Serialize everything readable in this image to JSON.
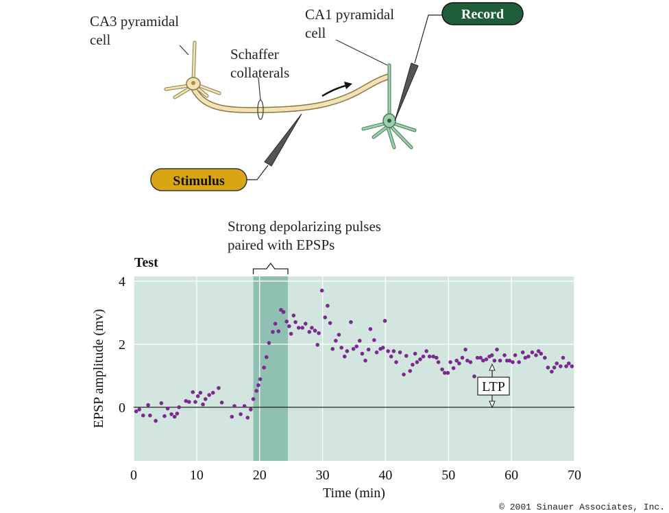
{
  "diagram": {
    "ca3_label": [
      "CA3 pyramidal",
      "cell"
    ],
    "schaffer_label": [
      "Schaffer",
      "collaterals"
    ],
    "ca1_label": [
      "CA1 pyramidal",
      "cell"
    ],
    "record_button": "Record",
    "stimulus_button": "Stimulus"
  },
  "chart_data": {
    "type": "scatter",
    "x_label": "Time (min)",
    "y_label": "EPSP amplitude (mv)",
    "annotations": {
      "test": "Test",
      "pulses": [
        "Strong depolarizing pulses",
        "paired with EPSPs"
      ],
      "ltp": "LTP"
    },
    "copyright": "© 2001 Sinauer Associates, Inc.",
    "highlight_span": [
      19,
      24.5
    ],
    "xlim": [
      0,
      70
    ],
    "ylim": [
      -1.7,
      4.15
    ],
    "xticks": [
      0,
      10,
      20,
      30,
      40,
      50,
      60,
      70
    ],
    "yticks": [
      0,
      2,
      4
    ],
    "grid": true,
    "color": "#7a2a8e",
    "x": [
      0.4,
      0.9,
      1.5,
      2.3,
      2.6,
      3.5,
      4.4,
      4.9,
      5.4,
      6.0,
      6.5,
      6.9,
      7.2,
      8.3,
      8.8,
      9.4,
      9.8,
      10.2,
      10.6,
      11.0,
      11.4,
      12.0,
      12.6,
      13.5,
      14.0,
      15.6,
      16.0,
      17.0,
      17.6,
      18.1,
      18.6,
      19.0,
      19.5,
      19.8,
      20.1,
      20.7,
      21.1,
      21.5,
      22.1,
      22.5,
      23.0,
      23.4,
      23.8,
      24.3,
      24.7,
      25.0,
      25.4,
      25.7,
      26.2,
      26.8,
      27.3,
      27.9,
      28.3,
      28.8,
      29.2,
      29.4,
      29.9,
      30.4,
      30.8,
      31.2,
      31.6,
      32.1,
      32.6,
      33.0,
      33.5,
      33.9,
      34.5,
      34.9,
      35.4,
      35.9,
      36.3,
      36.8,
      37.3,
      37.6,
      38.2,
      38.6,
      39.2,
      39.6,
      39.9,
      40.4,
      40.9,
      41.3,
      41.7,
      42.3,
      42.9,
      43.3,
      43.9,
      44.3,
      44.7,
      45.0,
      45.5,
      46.0,
      46.5,
      47.0,
      47.6,
      48.1,
      48.4,
      49.0,
      49.4,
      49.9,
      50.3,
      50.8,
      51.3,
      51.7,
      52.2,
      52.7,
      53.0,
      53.5,
      54.1,
      54.6,
      55.1,
      55.5,
      56.0,
      56.5,
      56.9,
      57.3,
      57.7,
      58.2,
      58.9,
      59.3,
      59.7,
      60.2,
      60.6,
      61.2,
      61.8,
      62.2,
      62.7,
      63.3,
      63.9,
      64.3,
      64.7,
      65.3,
      65.8,
      66.4,
      66.8,
      67.2,
      67.8,
      68.2,
      68.7,
      69.1,
      69.6
    ],
    "values": [
      -0.13,
      -0.07,
      -0.26,
      0.07,
      -0.26,
      -0.43,
      0.13,
      -0.28,
      -0.04,
      -0.22,
      -0.3,
      -0.2,
      0.0,
      0.2,
      0.17,
      0.48,
      0.17,
      0.35,
      0.46,
      0.09,
      0.26,
      0.39,
      0.46,
      0.61,
      0.15,
      -0.3,
      0.04,
      -0.22,
      0.04,
      -0.33,
      -0.07,
      0.26,
      0.52,
      0.7,
      0.89,
      1.26,
      1.59,
      2.04,
      2.39,
      2.65,
      2.41,
      3.09,
      3.02,
      2.72,
      2.57,
      2.33,
      2.91,
      2.7,
      2.52,
      2.52,
      2.65,
      2.39,
      2.52,
      2.43,
      1.98,
      2.35,
      3.7,
      2.85,
      3.22,
      2.67,
      1.85,
      2.11,
      2.3,
      1.89,
      1.61,
      1.78,
      2.7,
      1.85,
      1.93,
      2.11,
      1.7,
      1.48,
      1.83,
      2.48,
      2.13,
      1.74,
      1.85,
      1.89,
      2.74,
      1.78,
      1.61,
      1.78,
      1.43,
      1.74,
      1.04,
      1.63,
      1.15,
      1.35,
      1.7,
      1.43,
      1.52,
      1.61,
      1.78,
      1.61,
      1.61,
      1.57,
      1.43,
      1.2,
      1.09,
      1.09,
      1.43,
      1.24,
      1.48,
      1.39,
      1.57,
      1.83,
      1.48,
      1.43,
      0.98,
      1.57,
      1.57,
      1.48,
      1.52,
      1.61,
      1.65,
      1.48,
      1.83,
      1.48,
      1.65,
      1.48,
      1.48,
      1.43,
      1.65,
      1.43,
      1.74,
      1.57,
      1.61,
      1.74,
      1.65,
      1.78,
      1.7,
      1.57,
      1.26,
      1.13,
      1.26,
      1.39,
      1.3,
      1.57,
      1.3,
      1.39,
      1.3
    ]
  }
}
